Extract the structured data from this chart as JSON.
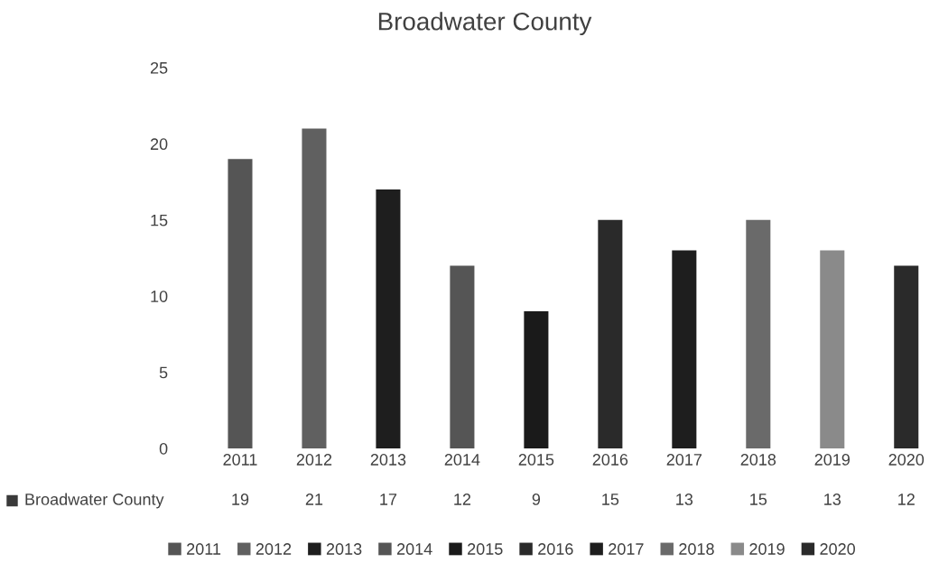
{
  "chart_data": {
    "type": "bar",
    "title": "Broadwater County",
    "categories": [
      "2011",
      "2012",
      "2013",
      "2014",
      "2015",
      "2016",
      "2017",
      "2018",
      "2019",
      "2020"
    ],
    "series": [
      {
        "name": "Broadwater County",
        "color": "#3a3a3a",
        "values": [
          19,
          21,
          17,
          12,
          9,
          15,
          13,
          15,
          13,
          12
        ],
        "colors": [
          "#555555",
          "#606060",
          "#1e1e1e",
          "#555555",
          "#1a1a1a",
          "#2a2a2a",
          "#1e1e1e",
          "#6a6a6a",
          "#8a8a8a",
          "#2a2a2a"
        ]
      }
    ],
    "ylim": [
      0,
      25
    ],
    "yticks": [
      0,
      5,
      10,
      15,
      20,
      25
    ],
    "data_labels": true,
    "legend": "bottom",
    "grid": false
  }
}
